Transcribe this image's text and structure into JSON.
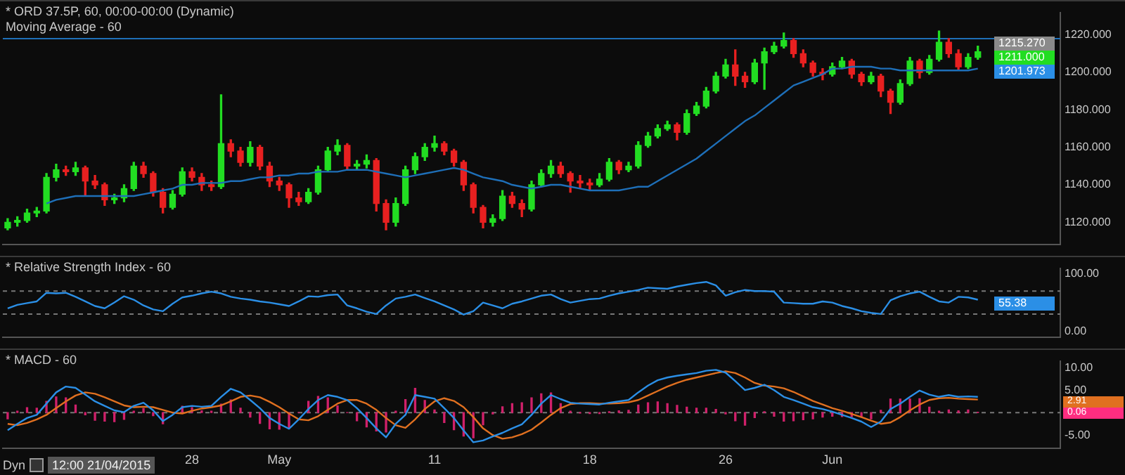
{
  "chart_data": [
    {
      "type": "candlestick",
      "title": "* ORD 37.5P, 60, 00:00-00:00 (Dynamic)",
      "subtitle": "Moving Average - 60",
      "categories": [
        null,
        null,
        null,
        null,
        null,
        null,
        null,
        null,
        null,
        null,
        null,
        null,
        null,
        null,
        null,
        null,
        null,
        null,
        null,
        null,
        null,
        null,
        null,
        null,
        null,
        null,
        null,
        null,
        null,
        null,
        null,
        null,
        null,
        null,
        null,
        null,
        null,
        null,
        null,
        null,
        null,
        null,
        null,
        null,
        null,
        null,
        null,
        null,
        null,
        null,
        null,
        null,
        null,
        null,
        null,
        null,
        null,
        null,
        null,
        null,
        null,
        null,
        null,
        null,
        null,
        null,
        null,
        null,
        null,
        null,
        null,
        null,
        null,
        null,
        null,
        null,
        null,
        null,
        null,
        null,
        null,
        null,
        null,
        null,
        null,
        null,
        null,
        null,
        null,
        null,
        null,
        null,
        null,
        null,
        null,
        null,
        null,
        null,
        null,
        null,
        null,
        null,
        null,
        null,
        null,
        null,
        null,
        null,
        null
      ],
      "colors": [
        "#22dd22",
        "#22dd22",
        "#22dd22",
        "#22dd22",
        "#22dd22",
        "#22dd22",
        "#e82020",
        "#22dd22",
        "#e82020",
        "#e82020",
        "#e82020",
        "#22dd22",
        "#22dd22",
        "#22dd22",
        "#e82020",
        "#e82020",
        "#e82020",
        "#22dd22",
        "#22dd22",
        "#e82020",
        "#e82020",
        "#e82020",
        "#22dd22",
        "#e82020",
        "#e82020",
        "#22dd22",
        "#e82020",
        "#e82020",
        "#e82020",
        "#e82020",
        "#e82020",
        "#22dd22",
        "#22dd22",
        "#22dd22",
        "#22dd22",
        "#e82020",
        "#22dd22",
        "#22dd22",
        "#e82020",
        "#e82020",
        "#22dd22",
        "#22dd22",
        "#22dd22",
        "#22dd22",
        "#22dd22",
        "#e82020",
        "#e82020",
        "#e82020",
        "#e82020",
        "#e82020",
        "#22dd22",
        "#22dd22",
        "#e82020",
        "#e82020",
        "#22dd22",
        "#22dd22",
        "#22dd22",
        "#e82020",
        "#e82020",
        "#e82020",
        "#e82020",
        "#22dd22",
        "#22dd22",
        "#e82020",
        "#22dd22",
        "#22dd22",
        "#22dd22",
        "#22dd22",
        "#22dd22",
        "#e82020",
        "#22dd22",
        "#22dd22",
        "#22dd22",
        "#22dd22",
        "#22dd22",
        "#e82020",
        "#e82020",
        "#22dd22",
        "#22dd22",
        "#22dd22",
        "#22dd22",
        "#e82020",
        "#e82020",
        "#e82020",
        "#e82020",
        "#22dd22",
        "#22dd22",
        "#e82020",
        "#e82020",
        "#22dd22",
        "#e82020",
        "#e82020",
        "#22dd22",
        "#22dd22",
        "#e82020",
        "#22dd22",
        "#22dd22",
        "#e82020",
        "#e82020",
        "#22dd22",
        "#22dd22",
        null,
        null,
        null,
        null,
        null,
        null,
        null,
        null
      ],
      "ohlc": [
        [
          1117,
          1122,
          1116,
          1120
        ],
        [
          1120,
          1123,
          1118,
          1121
        ],
        [
          1121,
          1127,
          1120,
          1125
        ],
        [
          1125,
          1128,
          1123,
          1126
        ],
        [
          1126,
          1146,
          1125,
          1144
        ],
        [
          1144,
          1151,
          1142,
          1148
        ],
        [
          1148,
          1150,
          1145,
          1147
        ],
        [
          1147,
          1152,
          1145,
          1149
        ],
        [
          1149,
          1150,
          1134,
          1142
        ],
        [
          1142,
          1145,
          1138,
          1140
        ],
        [
          1140,
          1141,
          1129,
          1132
        ],
        [
          1132,
          1135,
          1130,
          1133
        ],
        [
          1133,
          1140,
          1131,
          1138
        ],
        [
          1138,
          1152,
          1137,
          1150
        ],
        [
          1150,
          1152,
          1144,
          1146
        ],
        [
          1146,
          1147,
          1134,
          1136
        ],
        [
          1136,
          1138,
          1125,
          1128
        ],
        [
          1128,
          1137,
          1127,
          1135
        ],
        [
          1135,
          1149,
          1134,
          1147
        ],
        [
          1147,
          1149,
          1142,
          1144
        ],
        [
          1144,
          1146,
          1137,
          1140
        ],
        [
          1140,
          1142,
          1137,
          1139
        ],
        [
          1139,
          1188,
          1138,
          1162
        ],
        [
          1162,
          1164,
          1155,
          1158
        ],
        [
          1158,
          1160,
          1150,
          1152
        ],
        [
          1152,
          1163,
          1150,
          1160
        ],
        [
          1160,
          1161,
          1148,
          1150
        ],
        [
          1150,
          1152,
          1139,
          1142
        ],
        [
          1142,
          1144,
          1137,
          1140
        ],
        [
          1140,
          1141,
          1128,
          1133
        ],
        [
          1133,
          1136,
          1129,
          1131
        ],
        [
          1131,
          1138,
          1130,
          1136
        ],
        [
          1136,
          1150,
          1135,
          1148
        ],
        [
          1148,
          1160,
          1147,
          1158
        ],
        [
          1158,
          1164,
          1156,
          1161
        ],
        [
          1161,
          1162,
          1148,
          1150
        ],
        [
          1150,
          1153,
          1148,
          1151
        ],
        [
          1151,
          1156,
          1149,
          1153
        ],
        [
          1153,
          1154,
          1126,
          1130
        ],
        [
          1130,
          1132,
          1116,
          1120
        ],
        [
          1120,
          1133,
          1118,
          1130
        ],
        [
          1130,
          1150,
          1129,
          1148
        ],
        [
          1148,
          1157,
          1146,
          1155
        ],
        [
          1155,
          1162,
          1153,
          1160
        ],
        [
          1160,
          1166,
          1158,
          1162
        ],
        [
          1162,
          1163,
          1156,
          1158
        ],
        [
          1158,
          1159,
          1150,
          1152
        ],
        [
          1152,
          1153,
          1137,
          1140
        ],
        [
          1140,
          1141,
          1125,
          1128
        ],
        [
          1128,
          1129,
          1117,
          1120
        ],
        [
          1120,
          1124,
          1118,
          1122
        ],
        [
          1122,
          1137,
          1121,
          1134
        ],
        [
          1134,
          1136,
          1128,
          1130
        ],
        [
          1130,
          1132,
          1123,
          1127
        ],
        [
          1127,
          1142,
          1126,
          1140
        ],
        [
          1140,
          1148,
          1139,
          1146
        ],
        [
          1146,
          1153,
          1144,
          1150
        ],
        [
          1150,
          1152,
          1144,
          1146
        ],
        [
          1146,
          1147,
          1136,
          1142
        ],
        [
          1142,
          1145,
          1138,
          1141
        ],
        [
          1141,
          1143,
          1137,
          1140
        ],
        [
          1140,
          1146,
          1139,
          1143
        ],
        [
          1143,
          1154,
          1142,
          1152
        ],
        [
          1152,
          1153,
          1146,
          1148
        ],
        [
          1148,
          1152,
          1147,
          1150
        ],
        [
          1150,
          1163,
          1149,
          1161
        ],
        [
          1161,
          1168,
          1160,
          1166
        ],
        [
          1166,
          1172,
          1165,
          1170
        ],
        [
          1170,
          1174,
          1169,
          1172
        ],
        [
          1172,
          1173,
          1164,
          1168
        ],
        [
          1168,
          1180,
          1167,
          1178
        ],
        [
          1178,
          1184,
          1177,
          1182
        ],
        [
          1182,
          1192,
          1181,
          1190
        ],
        [
          1190,
          1200,
          1189,
          1198
        ],
        [
          1198,
          1207,
          1197,
          1204
        ],
        [
          1204,
          1212,
          1193,
          1198
        ],
        [
          1198,
          1200,
          1192,
          1195
        ],
        [
          1195,
          1207,
          1194,
          1205
        ],
        [
          1205,
          1213,
          1191,
          1211
        ],
        [
          1211,
          1216,
          1210,
          1214
        ],
        [
          1214,
          1221,
          1213,
          1217
        ],
        [
          1217,
          1218,
          1208,
          1210
        ],
        [
          1210,
          1212,
          1203,
          1205
        ],
        [
          1205,
          1206,
          1198,
          1200
        ],
        [
          1200,
          1202,
          1196,
          1199
        ],
        [
          1199,
          1205,
          1198,
          1203
        ],
        [
          1203,
          1208,
          1202,
          1206
        ],
        [
          1206,
          1207,
          1197,
          1199
        ],
        [
          1199,
          1200,
          1193,
          1195
        ],
        [
          1195,
          1200,
          1194,
          1198
        ],
        [
          1198,
          1199,
          1187,
          1190
        ],
        [
          1190,
          1191,
          1178,
          1184
        ],
        [
          1184,
          1196,
          1183,
          1194
        ],
        [
          1194,
          1208,
          1193,
          1206
        ],
        [
          1206,
          1207,
          1197,
          1200
        ],
        [
          1200,
          1209,
          1199,
          1207
        ],
        [
          1207,
          1222,
          1206,
          1216
        ],
        [
          1216,
          1218,
          1208,
          1210
        ],
        [
          1210,
          1212,
          1201,
          1203
        ],
        [
          1203,
          1210,
          1202,
          1208
        ],
        [
          1208,
          1214,
          1207,
          1211
        ],
        null,
        null,
        null,
        null,
        null,
        null,
        null,
        null
      ],
      "series": [
        {
          "type": "line",
          "color": "#1e6fb8",
          "values": [
            null,
            null,
            null,
            null,
            1130,
            1132,
            1133,
            1134,
            1134,
            1134,
            1134,
            1134,
            1134,
            1134,
            1135,
            1136,
            1137,
            1138,
            1140,
            1140,
            1141,
            1141,
            1141,
            1142,
            1142,
            1143,
            1144,
            1144,
            1145,
            1145,
            1146,
            1146,
            1147,
            1147,
            1147,
            1148,
            1148,
            1148,
            1147,
            1146,
            1145,
            1144,
            1145,
            1146,
            1147,
            1148,
            1149,
            1148,
            1146,
            1144,
            1143,
            1142,
            1140,
            1139,
            1138,
            1139,
            1140,
            1140,
            1139,
            1138,
            1137,
            1137,
            1137,
            1137,
            1138,
            1139,
            1139,
            1142,
            1145,
            1148,
            1151,
            1154,
            1158,
            1162,
            1166,
            1170,
            1174,
            1177,
            1181,
            1185,
            1189,
            1193,
            1195,
            1197,
            1199,
            1202,
            1202,
            1203,
            1203,
            1203,
            1202,
            1202,
            1201,
            1201,
            1201,
            1201,
            1201,
            1201,
            1201,
            1201,
            1202,
            null,
            null,
            null,
            null,
            null,
            null,
            null,
            null
          ]
        }
      ],
      "ylim": [
        1108,
        1232
      ],
      "yticks": [
        {
          "value": 1120,
          "label": "1120.000"
        },
        {
          "value": 1140,
          "label": "1140.000"
        },
        {
          "value": 1160,
          "label": "1160.000"
        },
        {
          "value": 1180,
          "label": "1180.000"
        },
        {
          "value": 1200,
          "label": "1200.000"
        },
        {
          "value": 1220,
          "label": "1220.000"
        }
      ],
      "ref_lines": [
        {
          "axis": "y",
          "value": 1218,
          "color": "#1e6fb8"
        }
      ],
      "annotations": [
        "1215.270",
        "1211.000",
        "1201.973"
      ],
      "tick_labels": "y"
    },
    {
      "type": "line",
      "title": "* Relative Strength Index - 60",
      "categories": [
        null,
        null,
        null,
        null,
        null,
        null,
        null,
        null,
        null,
        null,
        null,
        null,
        null,
        null,
        null,
        null,
        null,
        null,
        null,
        null,
        null,
        null,
        null,
        null,
        null,
        null,
        null,
        null,
        null,
        null,
        null,
        null,
        null,
        null,
        null,
        null,
        null,
        null,
        null,
        null,
        null,
        null,
        null,
        null,
        null,
        null,
        null,
        null,
        null,
        null,
        null,
        null,
        null,
        null,
        null,
        null,
        null,
        null,
        null,
        null,
        null,
        null,
        null,
        null,
        null,
        null,
        null,
        null,
        null,
        null,
        null,
        null,
        null,
        null,
        null,
        null,
        null,
        null,
        null,
        null,
        null,
        null,
        null,
        null,
        null,
        null,
        null,
        null,
        null,
        null,
        null,
        null,
        null,
        null,
        null,
        null,
        null,
        null,
        null,
        null,
        null,
        null,
        null,
        null,
        null,
        null,
        null,
        null,
        null
      ],
      "series": [
        {
          "color": "#2b8fe6",
          "values": [
            40,
            46,
            49,
            52,
            67,
            66,
            67,
            60,
            52,
            44,
            40,
            50,
            61,
            55,
            45,
            38,
            35,
            48,
            59,
            62,
            66,
            69,
            66,
            60,
            57,
            55,
            52,
            50,
            47,
            44,
            52,
            61,
            60,
            63,
            64,
            45,
            40,
            34,
            30,
            45,
            57,
            60,
            64,
            58,
            52,
            45,
            38,
            29,
            35,
            50,
            45,
            40,
            48,
            52,
            57,
            62,
            64,
            56,
            50,
            53,
            56,
            57,
            62,
            66,
            69,
            72,
            76,
            75,
            74,
            78,
            81,
            84,
            86,
            80,
            62,
            68,
            72,
            70,
            70,
            69,
            50,
            49,
            48,
            48,
            52,
            50,
            44,
            40,
            35,
            32,
            30,
            54,
            61,
            66,
            69,
            60,
            52,
            50,
            60,
            59,
            55,
            null,
            null,
            null,
            null,
            null,
            null,
            null,
            null
          ]
        }
      ],
      "ylim": [
        -11,
        110
      ],
      "yticks": [
        {
          "value": 0,
          "label": "0.00"
        },
        {
          "value": 100,
          "label": "100.00"
        }
      ],
      "ref_lines": [
        {
          "axis": "y",
          "value": 70,
          "line_style": "dashed"
        },
        {
          "axis": "y",
          "value": 30,
          "line_style": "dashed"
        }
      ],
      "annotations": [
        "55.38"
      ],
      "tick_labels": "y"
    },
    {
      "type": "line",
      "title": "* MACD - 60",
      "categories": [
        null,
        null,
        null,
        null,
        null,
        null,
        null,
        null,
        null,
        null,
        null,
        null,
        null,
        null,
        null,
        null,
        null,
        null,
        null,
        "28",
        null,
        null,
        null,
        null,
        null,
        null,
        null,
        null,
        "May",
        null,
        null,
        null,
        null,
        null,
        null,
        null,
        null,
        null,
        null,
        null,
        null,
        null,
        null,
        null,
        "11",
        null,
        null,
        null,
        null,
        null,
        null,
        null,
        null,
        null,
        null,
        null,
        null,
        null,
        null,
        null,
        "18",
        null,
        null,
        null,
        null,
        null,
        null,
        null,
        null,
        null,
        null,
        null,
        null,
        null,
        "26",
        null,
        null,
        null,
        null,
        null,
        null,
        null,
        null,
        null,
        null,
        "Jun",
        null,
        null,
        null,
        null,
        null,
        null,
        null,
        null,
        null,
        null,
        null,
        null,
        null,
        null,
        null,
        null,
        null,
        null,
        null,
        null,
        null,
        null,
        null
      ],
      "series": [
        {
          "type": "bar",
          "color": "#d0206a",
          "values": [
            -1.4,
            0.3,
            1.1,
            1,
            2.5,
            3.5,
            3.3,
            1.7,
            -0.5,
            -1.7,
            -1.9,
            -2,
            -1.5,
            0.3,
            0.9,
            -0.7,
            -2.5,
            null,
            1.4,
            1.1,
            0.4,
            0.3,
            1.9,
            2.8,
            1,
            -1,
            -2.4,
            -3.6,
            -3.7,
            -3.4,
            0,
            2.5,
            3.6,
            3.3,
            1.5,
            0,
            -1.8,
            -3.2,
            -4.1,
            -4.3,
            0.3,
            2.9,
            5.4,
            2.7,
            0.6,
            -2.2,
            -3.8,
            -5.2,
            -5.6,
            -2.7,
            -0.3,
            1.3,
            2,
            2.2,
            3.3,
            4.2,
            4.4,
            2,
            0.3,
            -0.1,
            -0.2,
            -0.2,
            0.2,
            0.4,
            0.5,
            1.7,
            2.2,
            2.4,
            2,
            1.6,
            1.2,
            1,
            1,
            0.7,
            -0.3,
            -1.8,
            -2.8,
            -1.1,
            0.2,
            -0.8,
            -1.9,
            -1.8,
            -1.6,
            -1.4,
            -1,
            -0.8,
            -0.9,
            -0.9,
            -1,
            -1.4,
            0.5,
            3,
            3,
            3,
            3.1,
            1.2,
            0.3,
            0.6,
            0.4,
            0.6,
            0.1,
            null,
            null,
            null,
            null,
            null,
            null,
            null,
            null
          ]
        },
        {
          "type": "line",
          "color": "#2b8fe6",
          "values": [
            -3.9,
            -2.5,
            -1.2,
            -0.5,
            2,
            4.5,
            5.8,
            5.5,
            4,
            2.5,
            1.5,
            0.5,
            0.1,
            1.5,
            2.2,
            0.5,
            -1.9,
            -0.5,
            1.2,
            1.5,
            1.3,
            1.5,
            3.5,
            5.3,
            4.5,
            2.8,
            1,
            -1.2,
            -2.5,
            -3.6,
            -1.5,
            0.8,
            2.8,
            3.9,
            3.5,
            2.8,
            1,
            -1.2,
            -3.5,
            -5.5,
            -2.5,
            -0.5,
            3.9,
            3.5,
            3.1,
            1,
            -1.2,
            -4,
            -6.6,
            -6.2,
            -5.3,
            -4.5,
            -3.5,
            -2.6,
            -0.5,
            2,
            3.9,
            3,
            2.2,
            2,
            1.9,
            1.8,
            2.2,
            2.5,
            2.8,
            4.5,
            6,
            7.2,
            7.8,
            8.2,
            8.5,
            8.8,
            9.3,
            9.5,
            8.9,
            7,
            5,
            5.5,
            6.2,
            5,
            3.5,
            2.8,
            2,
            1.2,
            0.8,
            0.2,
            -0.5,
            -1.2,
            -2,
            -3.2,
            -2,
            0.8,
            2,
            3.5,
            4.9,
            4,
            3.5,
            3.9,
            3.5,
            3.6,
            3.5,
            null,
            null,
            null,
            null,
            null,
            null,
            null,
            null
          ]
        },
        {
          "type": "line",
          "color": "#e07020",
          "values": [
            -2.5,
            -2.8,
            -2.3,
            -1.5,
            -0.5,
            1,
            2.5,
            3.8,
            4.5,
            4.2,
            3.4,
            2.5,
            1.6,
            1.2,
            1.3,
            1.2,
            0.6,
            0,
            -0.2,
            0.4,
            0.9,
            1.2,
            1.6,
            2.5,
            3.5,
            3.8,
            3.4,
            2.4,
            1.2,
            -0.2,
            -1.5,
            -1.7,
            -0.8,
            0.6,
            2,
            2.8,
            2.8,
            2,
            0.6,
            -1.2,
            -2.8,
            -3.4,
            -1.5,
            0.8,
            2.5,
            3.2,
            2.6,
            1.2,
            -1,
            -3.5,
            -5,
            -5.8,
            -5.5,
            -4.8,
            -3.8,
            -2.2,
            -0.5,
            1,
            1.9,
            2.1,
            2.1,
            2,
            2,
            2.1,
            2.3,
            2.8,
            3.8,
            4.8,
            5.8,
            6.6,
            7.3,
            7.8,
            8.3,
            8.8,
            9.2,
            8.8,
            7.8,
            6.6,
            6,
            5.8,
            5.4,
            4.6,
            3.6,
            2.6,
            1.8,
            1,
            0.4,
            -0.3,
            -1,
            -1.8,
            -2.5,
            -2.2,
            -1,
            0.5,
            1.8,
            2.8,
            3.2,
            3.3,
            3.1,
            3,
            2.9,
            null,
            null,
            null,
            null,
            null,
            null,
            null,
            null
          ]
        }
      ],
      "ylim": [
        -8,
        11.5
      ],
      "yticks": [
        {
          "value": -5,
          "label": "-5.00"
        },
        {
          "value": 5,
          "label": "5.00"
        },
        {
          "value": 10,
          "label": "10.00"
        }
      ],
      "ref_lines": [
        {
          "axis": "y",
          "value": 0,
          "line_style": "dashed"
        }
      ],
      "annotations": [
        "2.91",
        "0.06",
        "Dyn",
        "12:00 21/04/2015"
      ]
    }
  ]
}
